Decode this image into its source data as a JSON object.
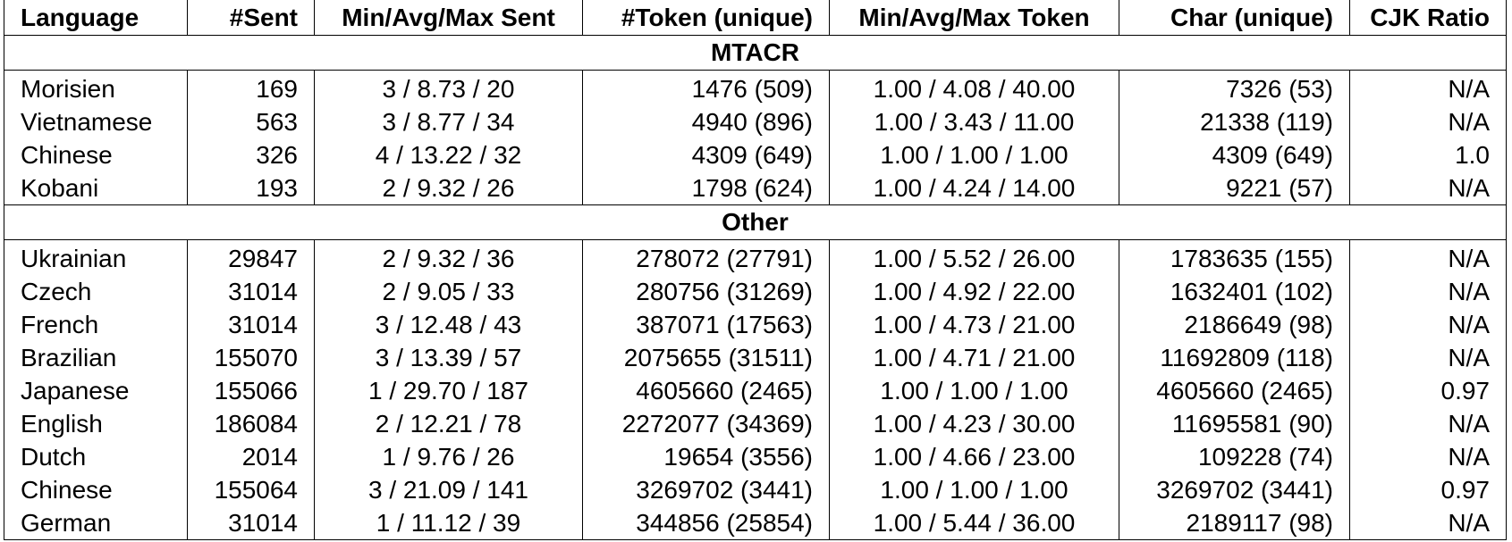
{
  "headers": [
    "Language",
    "#Sent",
    "Min/Avg/Max Sent",
    "#Token (unique)",
    "Min/Avg/Max Token",
    "Char (unique)",
    "CJK Ratio"
  ],
  "sections": [
    {
      "title": "MTACR",
      "rows": [
        [
          "Morisien",
          "169",
          "3 / 8.73 / 20",
          "1476 (509)",
          "1.00 / 4.08 / 40.00",
          "7326 (53)",
          "N/A"
        ],
        [
          "Vietnamese",
          "563",
          "3 / 8.77 / 34",
          "4940 (896)",
          "1.00 / 3.43 / 11.00",
          "21338 (119)",
          "N/A"
        ],
        [
          "Chinese",
          "326",
          "4 / 13.22 / 32",
          "4309 (649)",
          "1.00 / 1.00 / 1.00",
          "4309 (649)",
          "1.0"
        ],
        [
          "Kobani",
          "193",
          "2 / 9.32 / 26",
          "1798 (624)",
          "1.00 / 4.24 / 14.00",
          "9221 (57)",
          "N/A"
        ]
      ]
    },
    {
      "title": "Other",
      "rows": [
        [
          "Ukrainian",
          "29847",
          "2 / 9.32 / 36",
          "278072 (27791)",
          "1.00 / 5.52 / 26.00",
          "1783635 (155)",
          "N/A"
        ],
        [
          "Czech",
          "31014",
          "2 / 9.05 / 33",
          "280756 (31269)",
          "1.00 / 4.92 / 22.00",
          "1632401 (102)",
          "N/A"
        ],
        [
          "French",
          "31014",
          "3 / 12.48 / 43",
          "387071 (17563)",
          "1.00 / 4.73 / 21.00",
          "2186649 (98)",
          "N/A"
        ],
        [
          "Brazilian",
          "155070",
          "3 / 13.39 / 57",
          "2075655 (31511)",
          "1.00 / 4.71 / 21.00",
          "11692809 (118)",
          "N/A"
        ],
        [
          "Japanese",
          "155066",
          "1 / 29.70 / 187",
          "4605660 (2465)",
          "1.00 / 1.00 / 1.00",
          "4605660 (2465)",
          "0.97"
        ],
        [
          "English",
          "186084",
          "2 / 12.21 / 78",
          "2272077 (34369)",
          "1.00 / 4.23 / 30.00",
          "11695581 (90)",
          "N/A"
        ],
        [
          "Dutch",
          "2014",
          "1 / 9.76 / 26",
          "19654 (3556)",
          "1.00 / 4.66 / 23.00",
          "109228 (74)",
          "N/A"
        ],
        [
          "Chinese",
          "155064",
          "3 / 21.09 / 141",
          "3269702 (3441)",
          "1.00 / 1.00 / 1.00",
          "3269702 (3441)",
          "0.97"
        ],
        [
          "German",
          "31014",
          "1 / 11.12 / 39",
          "344856 (25854)",
          "1.00 / 5.44 / 36.00",
          "2189117 (98)",
          "N/A"
        ]
      ]
    }
  ]
}
